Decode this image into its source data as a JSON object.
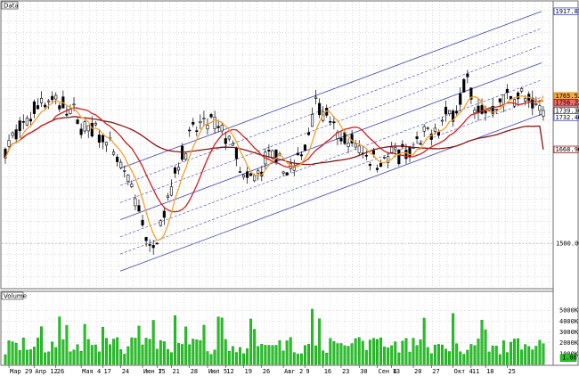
{
  "price_pane": {
    "title": "Data",
    "ylim": [
      1420,
      1935
    ],
    "price_ticks": [
      "1500.00"
    ],
    "price_tick_values": [
      1500
    ]
  },
  "volume_pane": {
    "title": "Volume",
    "ylim": [
      0,
      6000
    ],
    "volume_ticks": [
      "4000K",
      "3000K",
      "2000K",
      "1000K"
    ],
    "volume_tick_values": [
      4000,
      3000,
      2000,
      1000
    ],
    "top_tick": "5000K",
    "top_tick_value": 5000,
    "current_badge": "1.06"
  },
  "x_axis": {
    "labels": [
      "Мар 29",
      "Апр 12",
      "26",
      "Мая 4",
      "17",
      "24",
      "Июн 7",
      "15",
      "21",
      "28",
      "Июл 5",
      "12",
      "19",
      "26",
      "Авг 2",
      "9",
      "16",
      "23",
      "30",
      "Сен 6",
      "13",
      "20",
      "27",
      "Окт 4",
      "11",
      "18",
      "25"
    ]
  },
  "badges": [
    {
      "text": "1917.81",
      "value": 1917.81,
      "color": "#2b2bd6",
      "fill": "#ffffff"
    },
    {
      "text": "1765.52",
      "value": 1765.52,
      "color": "#e08a00",
      "fill": "#f2a94a"
    },
    {
      "text": "1756.22",
      "value": 1756.22,
      "color": "#c00000",
      "fill": "#f26a6a"
    },
    {
      "text": "1739.34",
      "value": 1739.34,
      "color": "#000000",
      "fill": "#ffffff"
    },
    {
      "text": "1732.46",
      "value": 1732.46,
      "color": "#2b2bd6",
      "fill": "#ffffff"
    },
    {
      "text": "1668.96",
      "value": 1668.96,
      "color": "#800000",
      "fill": "#ffffff"
    }
  ],
  "chart_data": [
    {
      "type": "candlestick",
      "title": "Data",
      "bars": 150,
      "ylim": [
        1420,
        1935
      ],
      "overlays": [
        {
          "name": "MA fast (orange)",
          "color": "#f0a030",
          "last": 1765.52
        },
        {
          "name": "MA mid (red)",
          "color": "#d02020",
          "last": 1756.22
        },
        {
          "name": "MA slow (dark red)",
          "color": "#8a1414",
          "last": 1668.96
        }
      ],
      "channel": {
        "color": "#4040c0",
        "upper_last": 1917.81,
        "lower_last": 1732.46
      },
      "last_close": 1739.34,
      "y_tick_labels": [
        "1500.00"
      ]
    },
    {
      "type": "bar",
      "title": "Volume",
      "ylim": [
        0,
        6000
      ],
      "y_tick_labels": [
        "5000K",
        "4000K",
        "3000K",
        "2000K",
        "1000K"
      ],
      "color": "#22c522"
    }
  ]
}
